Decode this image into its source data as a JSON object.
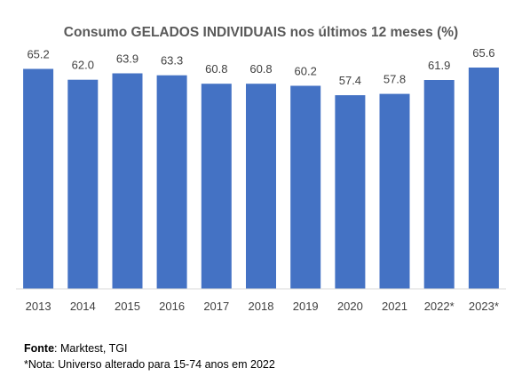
{
  "chart_data": {
    "type": "bar",
    "title": "Consumo GELADOS INDIVIDUAIS nos últimos 12 meses (%)",
    "categories": [
      "2013",
      "2014",
      "2015",
      "2016",
      "2017",
      "2018",
      "2019",
      "2020",
      "2021",
      "2022*",
      "2023*"
    ],
    "values": [
      65.2,
      62.0,
      63.9,
      63.3,
      60.8,
      60.8,
      60.2,
      57.4,
      57.8,
      61.9,
      65.6
    ],
    "value_labels": [
      "65.2",
      "62.0",
      "63.9",
      "63.3",
      "60.8",
      "60.8",
      "60.2",
      "57.4",
      "57.8",
      "61.9",
      "65.6"
    ],
    "xlabel": "",
    "ylabel": "",
    "ylim": [
      0,
      65.6
    ],
    "grid": false,
    "legend": "none",
    "bar_color": "#4472C4",
    "axis_color": "#D9D9D9"
  },
  "notes": {
    "source_label": "Fonte",
    "source_text": ": Marktest, TGI",
    "footnote": "*Nota: Universo alterado para 15-74 anos em 2022"
  }
}
